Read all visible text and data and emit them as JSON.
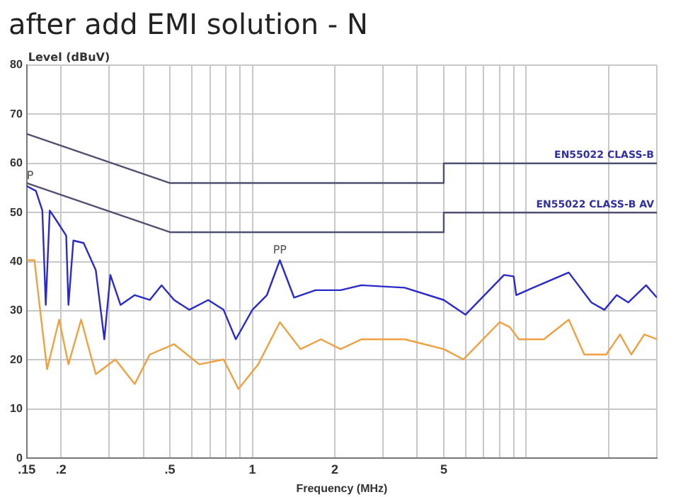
{
  "chart_data": {
    "type": "line",
    "title": "after add EMI solution - N",
    "xlabel": "Frequency (MHz)",
    "ylabel": "Level (dBuV)",
    "log": "x",
    "grid": true,
    "legend": false,
    "marker": "none",
    "xlim": [
      0.15,
      30
    ],
    "ylim": [
      0,
      80
    ],
    "xticks": [
      {
        "value": 0.15,
        "label": ".15"
      },
      {
        "value": 0.2,
        "label": ".2"
      },
      {
        "value": 0.3,
        "label": null
      },
      {
        "value": 0.4,
        "label": null
      },
      {
        "value": 0.5,
        "label": ".5"
      },
      {
        "value": 0.6,
        "label": null
      },
      {
        "value": 0.7,
        "label": null
      },
      {
        "value": 0.8,
        "label": null
      },
      {
        "value": 0.9,
        "label": null
      },
      {
        "value": 1,
        "label": "1"
      },
      {
        "value": 2,
        "label": "2"
      },
      {
        "value": 3,
        "label": null
      },
      {
        "value": 4,
        "label": null
      },
      {
        "value": 5,
        "label": "5"
      },
      {
        "value": 6,
        "label": null
      },
      {
        "value": 7,
        "label": null
      },
      {
        "value": 8,
        "label": null
      },
      {
        "value": 9,
        "label": null
      },
      {
        "value": 10,
        "label": null
      },
      {
        "value": 20,
        "label": null
      },
      {
        "value": 30,
        "label": null
      }
    ],
    "yticks": [
      0,
      10,
      20,
      30,
      40,
      50,
      60,
      70,
      80
    ],
    "series": [
      {
        "name": "EN55022 CLASS-B",
        "color": "#505070",
        "x": [
          0.15,
          0.5,
          5,
          5,
          30
        ],
        "values": [
          66,
          56,
          56,
          60,
          60
        ]
      },
      {
        "name": "EN55022 CLASS-B AV",
        "color": "#505070",
        "x": [
          0.15,
          0.5,
          5,
          5,
          30
        ],
        "values": [
          56,
          46,
          46,
          50,
          50
        ]
      },
      {
        "color": "#2a2acc",
        "x": [
          0.15,
          0.162,
          0.171,
          0.176,
          0.182,
          0.193,
          0.209,
          0.213,
          0.222,
          0.242,
          0.268,
          0.288,
          0.303,
          0.33,
          0.372,
          0.422,
          0.466,
          0.518,
          0.588,
          0.69,
          0.785,
          0.87,
          1.0,
          1.13,
          1.26,
          1.42,
          1.7,
          2.1,
          2.5,
          3.6,
          5.0,
          6.0,
          8.3,
          9.0,
          9.2,
          10.6,
          14.3,
          17.3,
          19.3,
          21.4,
          23.6,
          27.4,
          30
        ],
        "values": [
          55.4,
          54.4,
          50.4,
          31.2,
          50.4,
          48.3,
          45.3,
          31.2,
          44.3,
          43.8,
          38.3,
          24.2,
          37.3,
          31.2,
          33.2,
          32.2,
          35.2,
          32.2,
          30.2,
          32.2,
          30.2,
          24.2,
          30.2,
          33.2,
          40.3,
          32.7,
          34.2,
          34.2,
          35.2,
          34.7,
          32.2,
          29.2,
          37.3,
          37,
          33.2,
          34.7,
          37.8,
          31.7,
          30.2,
          33.2,
          31.7,
          35.2,
          32.7
        ]
      },
      {
        "color": "#f0a040",
        "x": [
          0.15,
          0.16,
          0.167,
          0.178,
          0.197,
          0.213,
          0.237,
          0.268,
          0.316,
          0.372,
          0.422,
          0.518,
          0.64,
          0.785,
          0.89,
          1.05,
          1.26,
          1.5,
          1.78,
          2.1,
          2.5,
          3.6,
          5.0,
          5.9,
          8.0,
          8.7,
          9.4,
          11.6,
          14.3,
          16.3,
          19.6,
          22,
          24.2,
          27,
          30
        ],
        "values": [
          40.3,
          40.3,
          31.2,
          18.1,
          28.2,
          19.1,
          28.2,
          17.1,
          20.1,
          15.1,
          21.1,
          23.2,
          19.1,
          20.1,
          14.1,
          19.1,
          27.7,
          22.2,
          24.2,
          22.2,
          24.2,
          24.2,
          22.2,
          20.1,
          27.7,
          26.7,
          24.2,
          24.2,
          28.2,
          21.1,
          21.1,
          25.2,
          21.1,
          25.2,
          24.2
        ]
      }
    ],
    "annotations": [
      {
        "text": "P",
        "x": 0.15,
        "y": 55.4
      },
      {
        "text": "PP",
        "x": 1.26,
        "y": 40.3
      }
    ]
  }
}
